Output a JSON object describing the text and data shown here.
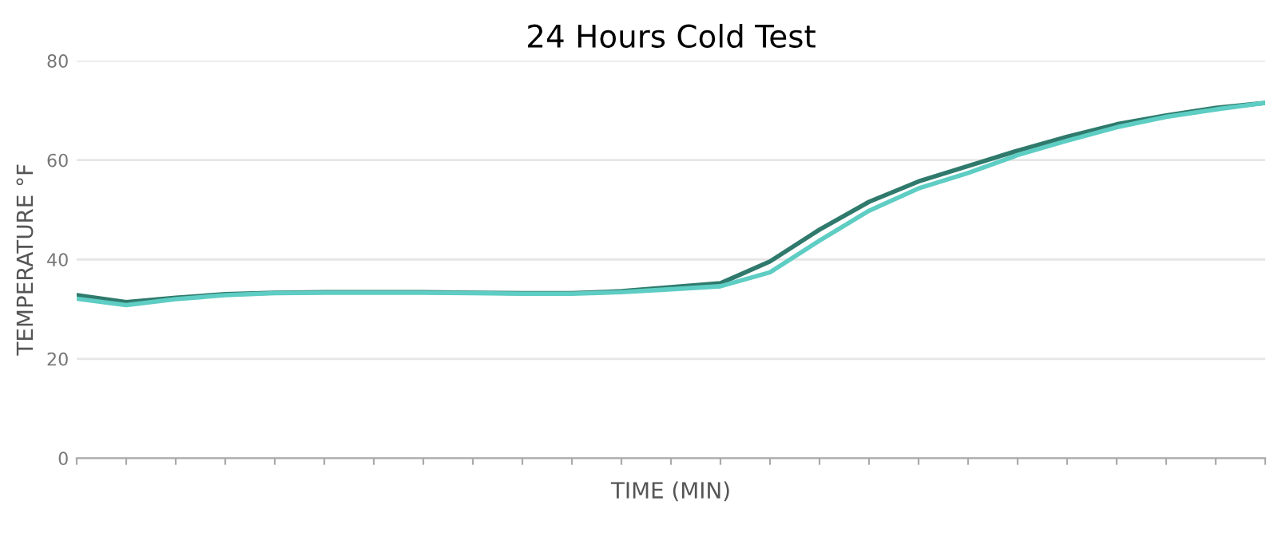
{
  "chart_data": {
    "type": "line",
    "title": "24 Hours Cold Test",
    "xlabel": "TIME (MIN)",
    "ylabel": "TEMPERATURE °F",
    "categories": [
      null,
      null,
      null,
      null,
      null,
      null,
      null,
      null,
      null,
      null,
      null,
      null,
      null,
      null,
      null,
      null,
      null,
      null,
      null,
      null,
      null,
      null,
      null,
      null,
      null
    ],
    "series": [
      {
        "color": "#2f7a6c",
        "values": [
          32.8,
          31.4,
          32.3,
          33.0,
          33.3,
          33.4,
          33.4,
          33.4,
          33.3,
          33.2,
          33.2,
          33.6,
          34.4,
          35.2,
          39.6,
          46.0,
          51.6,
          55.7,
          58.8,
          61.9,
          64.7,
          67.2,
          69.0,
          70.5,
          71.5
        ]
      },
      {
        "color": "#5ecdc3",
        "values": [
          32.1,
          30.8,
          32.0,
          32.8,
          33.2,
          33.3,
          33.3,
          33.3,
          33.2,
          33.1,
          33.1,
          33.4,
          34.0,
          34.6,
          37.4,
          43.8,
          49.8,
          54.3,
          57.4,
          61.0,
          63.9,
          66.6,
          68.7,
          70.2,
          71.5
        ]
      }
    ],
    "ylim": [
      0,
      80
    ],
    "yticks": [
      0,
      20,
      40,
      60,
      80
    ],
    "grid": "y",
    "marker": "none",
    "line_style": "solid"
  }
}
